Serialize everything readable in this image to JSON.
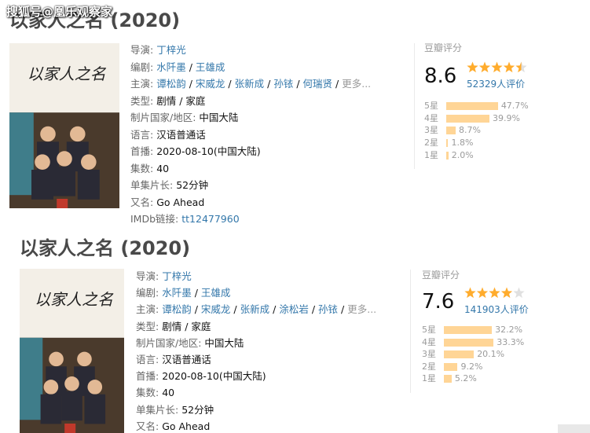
{
  "watermark": "搜狐号@凰乐观察家",
  "separator": "/",
  "entries": [
    {
      "title": "以家人之名",
      "year": "(2020)",
      "poster_title": "以家人之名",
      "fields": [
        {
          "label": "导演:",
          "values": [
            "丁梓光"
          ],
          "link": true
        },
        {
          "label": "编剧:",
          "values": [
            "水阡墨",
            "王雄成"
          ],
          "link": true
        },
        {
          "label": "主演:",
          "values": [
            "谭松韵",
            "宋威龙",
            "张新成",
            "孙铱",
            "何瑞贤"
          ],
          "link": true,
          "more": "更多..."
        },
        {
          "label": "类型:",
          "values": [
            "剧情",
            "家庭"
          ],
          "link": false
        },
        {
          "label": "制片国家/地区:",
          "values": [
            "中国大陆"
          ],
          "link": false
        },
        {
          "label": "语言:",
          "values": [
            "汉语普通话"
          ],
          "link": false
        },
        {
          "label": "首播:",
          "values": [
            "2020-08-10(中国大陆)"
          ],
          "link": false
        },
        {
          "label": "集数:",
          "values": [
            "40"
          ],
          "link": false
        },
        {
          "label": "单集片长:",
          "values": [
            "52分钟"
          ],
          "link": false
        },
        {
          "label": "又名:",
          "values": [
            "Go Ahead"
          ],
          "link": false
        },
        {
          "label": "IMDb链接:",
          "values": [
            "tt12477960"
          ],
          "link": true
        }
      ],
      "rating": {
        "label": "豆瓣评分",
        "score": 8.6,
        "votes": "52329人评价",
        "distribution": [
          {
            "star": "5星",
            "value": 47.7,
            "value_label": "47.7%"
          },
          {
            "star": "4星",
            "value": 39.9,
            "value_label": "39.9%"
          },
          {
            "star": "3星",
            "value": 8.7,
            "value_label": "8.7%"
          },
          {
            "star": "2星",
            "value": 1.8,
            "value_label": "1.8%"
          },
          {
            "star": "1星",
            "value": 2.0,
            "value_label": "2.0%"
          }
        ]
      }
    },
    {
      "title": "以家人之名",
      "year": "(2020)",
      "poster_title": "以家人之名",
      "fields": [
        {
          "label": "导演:",
          "values": [
            "丁梓光"
          ],
          "link": true
        },
        {
          "label": "编剧:",
          "values": [
            "水阡墨",
            "王雄成"
          ],
          "link": true
        },
        {
          "label": "主演:",
          "values": [
            "谭松韵",
            "宋威龙",
            "张新成",
            "涂松岩",
            "孙铱"
          ],
          "link": true,
          "more": "更多..."
        },
        {
          "label": "类型:",
          "values": [
            "剧情",
            "家庭"
          ],
          "link": false
        },
        {
          "label": "制片国家/地区:",
          "values": [
            "中国大陆"
          ],
          "link": false
        },
        {
          "label": "语言:",
          "values": [
            "汉语普通话"
          ],
          "link": false
        },
        {
          "label": "首播:",
          "values": [
            "2020-08-10(中国大陆)"
          ],
          "link": false
        },
        {
          "label": "集数:",
          "values": [
            "40"
          ],
          "link": false
        },
        {
          "label": "单集片长:",
          "values": [
            "52分钟"
          ],
          "link": false
        },
        {
          "label": "又名:",
          "values": [
            "Go Ahead"
          ],
          "link": false
        }
      ],
      "rating": {
        "label": "豆瓣评分",
        "score": 7.6,
        "votes": "141903人评价",
        "distribution": [
          {
            "star": "5星",
            "value": 32.2,
            "value_label": "32.2%"
          },
          {
            "star": "4星",
            "value": 33.3,
            "value_label": "33.3%"
          },
          {
            "star": "3星",
            "value": 20.1,
            "value_label": "20.1%"
          },
          {
            "star": "2星",
            "value": 9.2,
            "value_label": "9.2%"
          },
          {
            "star": "1星",
            "value": 5.2,
            "value_label": "5.2%"
          }
        ]
      }
    }
  ]
}
